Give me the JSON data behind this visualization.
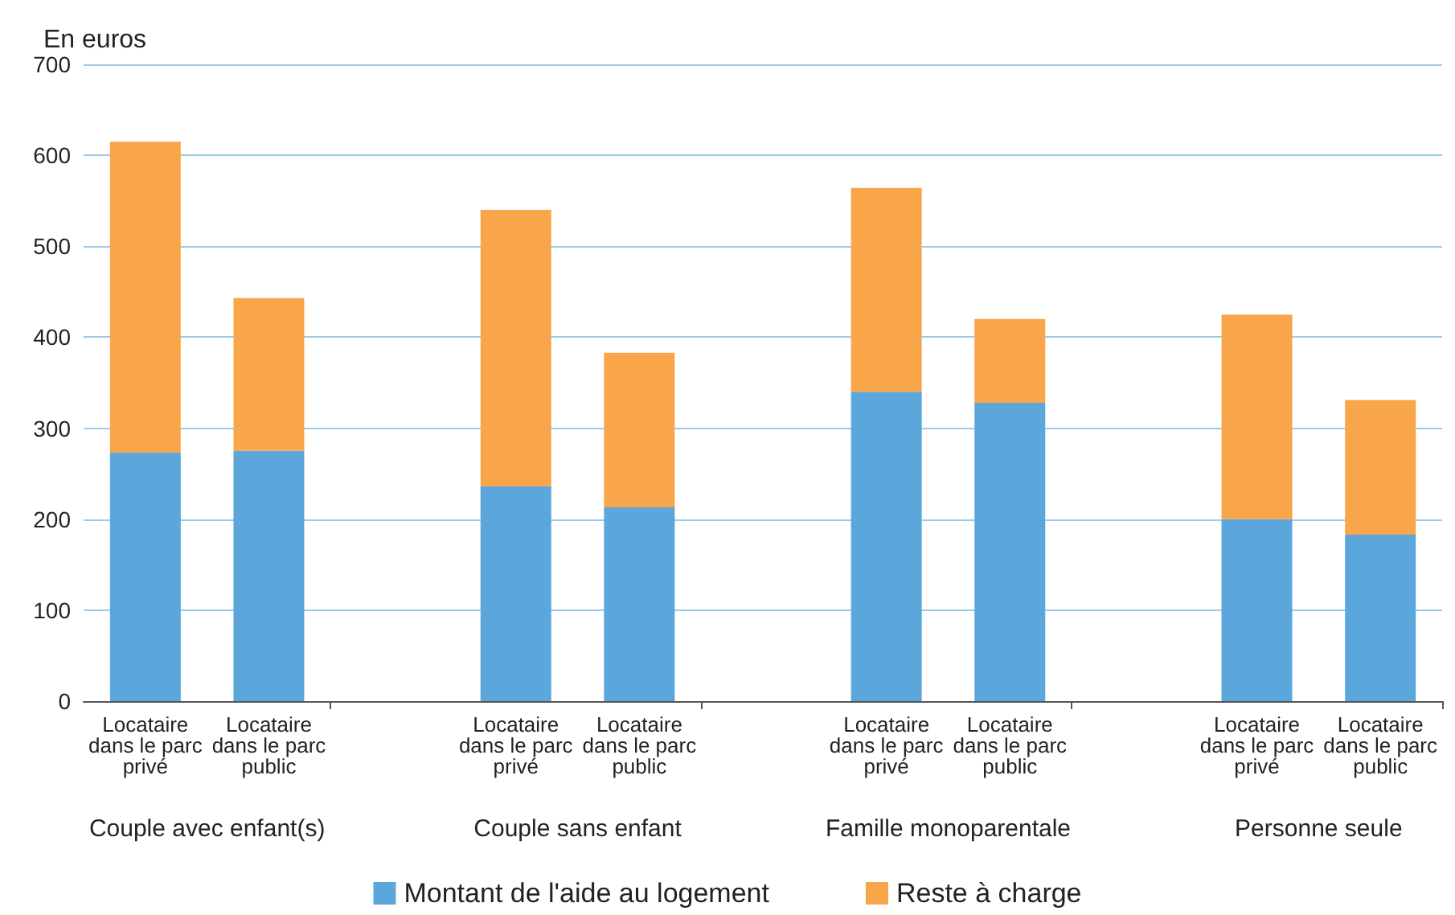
{
  "chart_data": {
    "type": "bar",
    "stacked": true,
    "ylabel": "En euros",
    "categories": [
      "Locataire\ndans le parc\nprivé",
      "Locataire\ndans le parc\npublic",
      null,
      "Locataire\ndans le parc\nprivé",
      "Locataire\ndans le parc\npublic",
      null,
      "Locataire\ndans le parc\nprivé",
      "Locataire\ndans le parc\npublic",
      null,
      "Locataire\ndans le parc\nprivé",
      "Locataire\ndans le parc\npublic"
    ],
    "series": [
      {
        "name": "Montant de l'aide au logement",
        "color": "#5ba7dc",
        "values": [
          273,
          275,
          null,
          236,
          213,
          null,
          340,
          328,
          null,
          200,
          183
        ]
      },
      {
        "name": "Reste à charge",
        "color": "#f9a54a",
        "values": [
          342,
          168,
          null,
          304,
          170,
          null,
          224,
          92,
          null,
          225,
          148
        ]
      }
    ],
    "annotations": [
      "Couple avec enfant(s)",
      "Couple sans enfant",
      "Famille monoparentale",
      "Personne seule"
    ],
    "ylim": [
      0,
      700
    ],
    "yticks": [
      0,
      100,
      200,
      300,
      400,
      500,
      600,
      700
    ],
    "grid": "y",
    "legend": "bottom"
  }
}
